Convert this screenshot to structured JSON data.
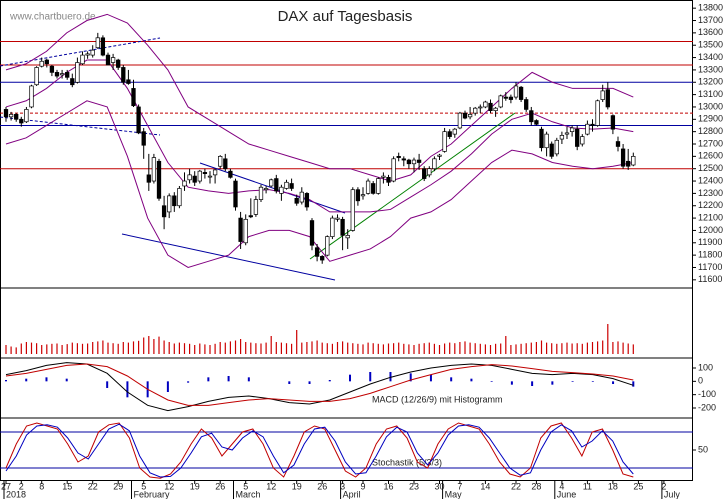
{
  "chart_data": {
    "type": "candlestick",
    "title": "DAX auf Tagesbasis",
    "watermark": "www.chartbuero.de",
    "macd_title": "MACD (12/26/9) mit Histogramm",
    "stoch_title": "Stochastik (5/3/3)",
    "ylim": [
      11550,
      13850
    ],
    "yticks": [
      13800,
      13700,
      13600,
      13500,
      13400,
      13300,
      13200,
      13100,
      13000,
      12900,
      12800,
      12700,
      12600,
      12500,
      12400,
      12300,
      12200,
      12100,
      12000,
      11900,
      11800,
      11700,
      11600
    ],
    "x_labels": [
      "27",
      "2",
      "8",
      "15",
      "22",
      "29",
      "5",
      "12",
      "19",
      "26",
      "5",
      "12",
      "19",
      "26",
      "3",
      "9",
      "16",
      "23",
      "30",
      "7",
      "14",
      "22",
      "28",
      "4",
      "11",
      "18",
      "25",
      "2"
    ],
    "months": [
      "2018",
      "February",
      "March",
      "April",
      "May",
      "June",
      "July"
    ],
    "candles": [
      [
        12980,
        13000,
        12880,
        12920
      ],
      [
        12920,
        12960,
        12890,
        12940
      ],
      [
        12940,
        12950,
        12880,
        12900
      ],
      [
        12900,
        12920,
        12840,
        12870
      ],
      [
        12880,
        13000,
        12870,
        12980
      ],
      [
        13000,
        13180,
        12990,
        13170
      ],
      [
        13180,
        13330,
        13170,
        13320
      ],
      [
        13330,
        13400,
        13320,
        13370
      ],
      [
        13380,
        13390,
        13320,
        13350
      ],
      [
        13330,
        13340,
        13250,
        13280
      ],
      [
        13280,
        13300,
        13230,
        13250
      ],
      [
        13260,
        13300,
        13230,
        13270
      ],
      [
        13280,
        13300,
        13220,
        13240
      ],
      [
        13230,
        13270,
        13160,
        13180
      ],
      [
        13200,
        13400,
        13190,
        13360
      ],
      [
        13350,
        13450,
        13340,
        13420
      ],
      [
        13420,
        13450,
        13390,
        13430
      ],
      [
        13420,
        13500,
        13400,
        13460
      ],
      [
        13480,
        13600,
        13470,
        13560
      ],
      [
        13560,
        13580,
        13410,
        13420
      ],
      [
        13420,
        13440,
        13350,
        13340
      ],
      [
        13360,
        13430,
        13300,
        13400
      ],
      [
        13380,
        13390,
        13300,
        13320
      ],
      [
        13320,
        13340,
        13180,
        13200
      ],
      [
        13220,
        13300,
        13180,
        13190
      ],
      [
        13150,
        13220,
        13000,
        13010
      ],
      [
        13000,
        13020,
        12780,
        12790
      ],
      [
        12800,
        12830,
        12580,
        12690
      ],
      [
        12450,
        12620,
        12320,
        12390
      ],
      [
        12400,
        12620,
        12380,
        12590
      ],
      [
        12560,
        12580,
        12240,
        12260
      ],
      [
        12200,
        12280,
        12010,
        12110
      ],
      [
        12150,
        12300,
        12100,
        12280
      ],
      [
        12280,
        12310,
        12150,
        12200
      ],
      [
        12200,
        12360,
        12180,
        12340
      ],
      [
        12360,
        12470,
        12320,
        12400
      ],
      [
        12410,
        12500,
        12380,
        12450
      ],
      [
        12440,
        12480,
        12360,
        12390
      ],
      [
        12400,
        12490,
        12380,
        12480
      ],
      [
        12470,
        12500,
        12420,
        12460
      ],
      [
        12440,
        12480,
        12380,
        12440
      ],
      [
        12450,
        12500,
        12380,
        12490
      ],
      [
        12520,
        12610,
        12500,
        12600
      ],
      [
        12580,
        12620,
        12480,
        12500
      ],
      [
        12480,
        12500,
        12420,
        12430
      ],
      [
        12400,
        12420,
        12160,
        12190
      ],
      [
        12100,
        12150,
        11850,
        11910
      ],
      [
        11900,
        12130,
        11880,
        12090
      ],
      [
        12120,
        12260,
        12100,
        12110
      ],
      [
        12130,
        12280,
        12110,
        12250
      ],
      [
        12250,
        12370,
        12230,
        12350
      ],
      [
        12330,
        12360,
        12300,
        12340
      ],
      [
        12360,
        12420,
        12350,
        12410
      ],
      [
        12420,
        12450,
        12300,
        12320
      ],
      [
        12300,
        12370,
        12240,
        12350
      ],
      [
        12340,
        12410,
        12330,
        12390
      ],
      [
        12380,
        12420,
        12320,
        12340
      ],
      [
        12260,
        12290,
        12200,
        12220
      ],
      [
        12230,
        12350,
        12210,
        12310
      ],
      [
        12300,
        12310,
        12160,
        12190
      ],
      [
        12080,
        12100,
        11840,
        11880
      ],
      [
        11860,
        11890,
        11750,
        11790
      ],
      [
        11790,
        11800,
        11730,
        11760
      ],
      [
        11800,
        11960,
        11790,
        11950
      ],
      [
        11950,
        12120,
        11930,
        12100
      ],
      [
        12090,
        12130,
        12070,
        12100
      ],
      [
        12090,
        12110,
        11840,
        11960
      ],
      [
        11940,
        12010,
        11850,
        11960
      ],
      [
        12000,
        12350,
        11990,
        12330
      ],
      [
        12330,
        12350,
        12200,
        12240
      ],
      [
        12280,
        12350,
        12250,
        12290
      ],
      [
        12300,
        12420,
        12290,
        12400
      ],
      [
        12380,
        12400,
        12290,
        12300
      ],
      [
        12300,
        12430,
        12290,
        12420
      ],
      [
        12430,
        12470,
        12380,
        12440
      ],
      [
        12430,
        12450,
        12360,
        12390
      ],
      [
        12400,
        12600,
        12390,
        12580
      ],
      [
        12600,
        12630,
        12560,
        12590
      ],
      [
        12580,
        12600,
        12520,
        12570
      ],
      [
        12570,
        12580,
        12500,
        12540
      ],
      [
        12540,
        12590,
        12470,
        12570
      ],
      [
        12570,
        12620,
        12490,
        12550
      ],
      [
        12500,
        12520,
        12400,
        12420
      ],
      [
        12450,
        12520,
        12430,
        12500
      ],
      [
        12500,
        12600,
        12480,
        12580
      ],
      [
        12600,
        12620,
        12570,
        12610
      ],
      [
        12640,
        12830,
        12630,
        12800
      ],
      [
        12800,
        12820,
        12740,
        12760
      ],
      [
        12780,
        12830,
        12750,
        12820
      ],
      [
        12830,
        12960,
        12820,
        12950
      ],
      [
        12950,
        12970,
        12900,
        12910
      ],
      [
        12920,
        13000,
        12900,
        12940
      ],
      [
        12950,
        13000,
        12930,
        12990
      ],
      [
        13000,
        13020,
        12950,
        13000
      ],
      [
        13000,
        13050,
        12990,
        13040
      ],
      [
        13030,
        13060,
        12950,
        12970
      ],
      [
        12970,
        13000,
        12920,
        12990
      ],
      [
        13000,
        13100,
        12990,
        13090
      ],
      [
        13080,
        13120,
        13050,
        13070
      ],
      [
        13080,
        13100,
        13030,
        13060
      ],
      [
        13080,
        13200,
        13060,
        13170
      ],
      [
        13160,
        13170,
        13040,
        13060
      ],
      [
        13060,
        13080,
        12960,
        12980
      ],
      [
        12970,
        13000,
        12850,
        12880
      ],
      [
        12890,
        12900,
        12850,
        12860
      ],
      [
        12820,
        12840,
        12640,
        12670
      ],
      [
        12670,
        12800,
        12600,
        12780
      ],
      [
        12700,
        12720,
        12580,
        12600
      ],
      [
        12620,
        12750,
        12600,
        12730
      ],
      [
        12740,
        12800,
        12700,
        12770
      ],
      [
        12780,
        12840,
        12740,
        12790
      ],
      [
        12800,
        12850,
        12760,
        12830
      ],
      [
        12820,
        12850,
        12650,
        12680
      ],
      [
        12700,
        12780,
        12680,
        12760
      ],
      [
        12780,
        12890,
        12770,
        12860
      ],
      [
        12860,
        12900,
        12800,
        12850
      ],
      [
        12850,
        13060,
        12840,
        13050
      ],
      [
        13060,
        13180,
        13040,
        13130
      ],
      [
        13140,
        13200,
        12980,
        13000
      ],
      [
        12930,
        12940,
        12780,
        12820
      ],
      [
        12720,
        12760,
        12640,
        12680
      ],
      [
        12660,
        12700,
        12500,
        12520
      ],
      [
        12560,
        12660,
        12490,
        12520
      ],
      [
        12530,
        12630,
        12520,
        12600
      ]
    ],
    "bull_color": "#ffffff",
    "bear_color": "#000000",
    "levels": [
      {
        "value": 13530,
        "color": "#c00000",
        "dash": false
      },
      {
        "value": 13340,
        "color": "#c00000",
        "dash": false
      },
      {
        "value": 13200,
        "color": "#0000a0",
        "dash": false
      },
      {
        "value": 12950,
        "color": "#c00000",
        "dash": true
      },
      {
        "value": 12850,
        "color": "#0000a0",
        "dash": false
      },
      {
        "value": 12500,
        "color": "#c00000",
        "dash": false
      }
    ],
    "bands": {
      "color": "#800080",
      "upper": [
        13300,
        13350,
        13450,
        13600,
        13700,
        13750,
        13680,
        13500,
        13300,
        13000,
        12900,
        12800,
        12700,
        12650,
        12600,
        12550,
        12500,
        12500,
        12450,
        12400,
        12450,
        12600,
        12700,
        12850,
        13000,
        13150,
        13280,
        13200,
        13150,
        13150,
        13150,
        13080
      ],
      "middle": [
        13000,
        13050,
        13150,
        13280,
        13380,
        13380,
        13150,
        12850,
        12550,
        12350,
        12320,
        12300,
        12320,
        12330,
        12300,
        12250,
        12150,
        12150,
        12150,
        12170,
        12270,
        12370,
        12480,
        12620,
        12780,
        12900,
        12950,
        12880,
        12830,
        12820,
        12830,
        12800
      ],
      "lower": [
        12700,
        12750,
        12850,
        12950,
        13050,
        13000,
        12600,
        12100,
        11800,
        11700,
        11750,
        11800,
        11950,
        12000,
        12000,
        11950,
        11750,
        11800,
        11850,
        11950,
        12100,
        12150,
        12250,
        12400,
        12550,
        12650,
        12620,
        12550,
        12520,
        12500,
        12520,
        12550
      ]
    },
    "volume": {
      "color": "#cc0000",
      "values": [
        30,
        25,
        22,
        35,
        40,
        38,
        36,
        30,
        32,
        34,
        35,
        30,
        33,
        38,
        36,
        34,
        35,
        40,
        42,
        45,
        38,
        36,
        34,
        40,
        38,
        42,
        44,
        55,
        60,
        50,
        58,
        45,
        40,
        35,
        38,
        36,
        34,
        30,
        35,
        32,
        30,
        34,
        40,
        38,
        42,
        45,
        50,
        40,
        38,
        36,
        35,
        38,
        60,
        40,
        38,
        36,
        34,
        80,
        38,
        40,
        42,
        45,
        38,
        36,
        34,
        40,
        42,
        38,
        36,
        34,
        32,
        38,
        36,
        34,
        32,
        35,
        36,
        38,
        34,
        32,
        30,
        34,
        36,
        38,
        34,
        30,
        35,
        38,
        36,
        40,
        42,
        38,
        36,
        34,
        32,
        30,
        34,
        35,
        60,
        30,
        32,
        34,
        36,
        38,
        40,
        45,
        38,
        36,
        34,
        36,
        38,
        35,
        36,
        34,
        38,
        40,
        42,
        45,
        100,
        40,
        42,
        38,
        35,
        32
      ]
    },
    "macd": {
      "ylim": [
        -260,
        160
      ],
      "yticks": [
        100,
        0,
        -100,
        -200
      ],
      "series": [
        {
          "color": "#000000",
          "values": [
            50,
            80,
            120,
            140,
            130,
            60,
            -80,
            -180,
            -220,
            -190,
            -150,
            -120,
            -110,
            -130,
            -160,
            -170,
            -140,
            -80,
            -20,
            30,
            70,
            100,
            120,
            130,
            120,
            90,
            60,
            50,
            60,
            50,
            20,
            -30
          ]
        },
        {
          "color": "#c00000",
          "values": [
            40,
            60,
            90,
            120,
            130,
            110,
            40,
            -60,
            -140,
            -180,
            -180,
            -160,
            -140,
            -130,
            -140,
            -150,
            -150,
            -130,
            -90,
            -40,
            10,
            50,
            90,
            110,
            125,
            115,
            95,
            75,
            65,
            55,
            40,
            10
          ]
        }
      ],
      "histogram": {
        "color": "#0000c0",
        "values": [
          10,
          20,
          30,
          20,
          0,
          -50,
          -120,
          -120,
          -80,
          -10,
          30,
          40,
          30,
          0,
          -20,
          -20,
          10,
          50,
          70,
          70,
          60,
          50,
          30,
          20,
          -5,
          -25,
          -35,
          -25,
          -5,
          -5,
          -20,
          -40
        ]
      }
    },
    "stoch": {
      "ylim": [
        0,
        100
      ],
      "yticks": [
        50
      ],
      "levels": [
        80,
        20
      ],
      "level_color": "#0000a0",
      "series": [
        {
          "color": "#c00000",
          "values": [
            20,
            60,
            90,
            95,
            90,
            85,
            60,
            30,
            40,
            80,
            92,
            95,
            70,
            20,
            5,
            3,
            10,
            30,
            60,
            85,
            70,
            40,
            60,
            80,
            85,
            60,
            20,
            5,
            40,
            80,
            90,
            85,
            50,
            15,
            5,
            20,
            60,
            85,
            90,
            70,
            30,
            20,
            60,
            85,
            95,
            90,
            85,
            60,
            30,
            10,
            5,
            20,
            70,
            90,
            95,
            70,
            40,
            80,
            85,
            50,
            10,
            5
          ]
        },
        {
          "color": "#0000c0",
          "values": [
            15,
            40,
            75,
            90,
            92,
            88,
            70,
            45,
            35,
            60,
            85,
            93,
            82,
            40,
            12,
            5,
            6,
            20,
            45,
            72,
            78,
            55,
            50,
            70,
            82,
            72,
            40,
            12,
            25,
            60,
            85,
            88,
            65,
            30,
            10,
            12,
            40,
            72,
            88,
            80,
            45,
            25,
            45,
            75,
            90,
            92,
            88,
            70,
            45,
            20,
            8,
            12,
            50,
            80,
            92,
            82,
            55,
            65,
            82,
            65,
            30,
            10
          ]
        }
      ]
    }
  }
}
